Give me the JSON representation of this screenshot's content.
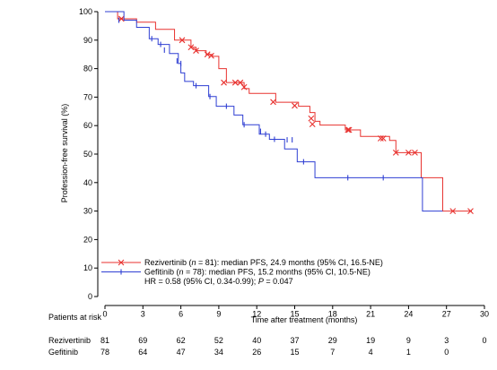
{
  "chart_data": {
    "type": "line",
    "xlabel": "Time after treatment (months)",
    "ylabel": "Profession-free survival (%)",
    "xlim": [
      0,
      30
    ],
    "ylim": [
      0,
      100
    ],
    "x_ticks": [
      "0",
      "3",
      "6",
      "9",
      "12",
      "15",
      "18",
      "21",
      "24",
      "27",
      "30"
    ],
    "y_ticks": [
      "0",
      "10",
      "20",
      "30",
      "40",
      "50",
      "60",
      "70",
      "80",
      "90",
      "100"
    ],
    "grid": false,
    "legend_position": "bottom-left",
    "series": [
      {
        "name": "Rezivertinib",
        "color": "#e8322f",
        "marker": "x-mark",
        "steps": [
          [
            0,
            100
          ],
          [
            1,
            97.5
          ],
          [
            2.5,
            96.3
          ],
          [
            4,
            93.8
          ],
          [
            5.5,
            90
          ],
          [
            6.8,
            87.5
          ],
          [
            7.2,
            86.3
          ],
          [
            8,
            85
          ],
          [
            8.5,
            84.3
          ],
          [
            9,
            80
          ],
          [
            9.6,
            75.1
          ],
          [
            10.5,
            75.1
          ],
          [
            11,
            73
          ],
          [
            11.4,
            71.3
          ],
          [
            13.5,
            68.2
          ],
          [
            15.3,
            66.8
          ],
          [
            16.2,
            64.6
          ],
          [
            16.6,
            61.5
          ],
          [
            17,
            60.2
          ],
          [
            19,
            58.5
          ],
          [
            20.2,
            56.2
          ],
          [
            22.5,
            54.8
          ],
          [
            23,
            50.5
          ],
          [
            25,
            41.7
          ],
          [
            26.7,
            30
          ],
          [
            29,
            30
          ]
        ],
        "censors": [
          [
            1.3,
            97.5
          ],
          [
            6.1,
            90
          ],
          [
            6.8,
            87.5
          ],
          [
            7.2,
            86.3
          ],
          [
            8.1,
            85
          ],
          [
            8.4,
            84.5
          ],
          [
            9.4,
            75.1
          ],
          [
            10.3,
            75.1
          ],
          [
            10.7,
            75.1
          ],
          [
            11,
            73.5
          ],
          [
            13.3,
            68.3
          ],
          [
            15,
            67
          ],
          [
            16.3,
            62.5
          ],
          [
            16.4,
            60.5
          ],
          [
            19.2,
            58.5
          ],
          [
            19.3,
            58.5
          ],
          [
            21.8,
            55.5
          ],
          [
            22,
            55.5
          ],
          [
            23,
            50.5
          ],
          [
            24,
            50.5
          ],
          [
            24.5,
            50.5
          ],
          [
            27.5,
            30
          ],
          [
            28.9,
            30
          ]
        ]
      },
      {
        "name": "Gefitinib",
        "color": "#2f3fd3",
        "marker": "plus-mark",
        "steps": [
          [
            0,
            100
          ],
          [
            1.5,
            97
          ],
          [
            2.5,
            94.5
          ],
          [
            3.5,
            90.5
          ],
          [
            4.2,
            88.5
          ],
          [
            5.1,
            85.3
          ],
          [
            5.8,
            81.8
          ],
          [
            6,
            78.5
          ],
          [
            6.3,
            75.5
          ],
          [
            7,
            74
          ],
          [
            8.2,
            70.2
          ],
          [
            8.8,
            66.8
          ],
          [
            10.2,
            63.7
          ],
          [
            10.9,
            60.3
          ],
          [
            12.2,
            57
          ],
          [
            13,
            55.2
          ],
          [
            14.2,
            51.8
          ],
          [
            15.2,
            47.3
          ],
          [
            16.6,
            41.7
          ],
          [
            24.7,
            41.7
          ],
          [
            25.1,
            30
          ],
          [
            26.7,
            30
          ]
        ],
        "censors": [
          [
            1.1,
            97
          ],
          [
            3.7,
            90.5
          ],
          [
            4.4,
            88.5
          ],
          [
            4.7,
            86.5
          ],
          [
            5.7,
            82.7
          ],
          [
            6,
            81.8
          ],
          [
            7.2,
            74
          ],
          [
            8.3,
            70.2
          ],
          [
            9.6,
            66.8
          ],
          [
            11,
            60.3
          ],
          [
            12.3,
            58
          ],
          [
            12.7,
            57
          ],
          [
            13.4,
            55.2
          ],
          [
            14.4,
            55
          ],
          [
            14.8,
            55
          ],
          [
            15.7,
            47.3
          ],
          [
            19.2,
            41.7
          ],
          [
            22,
            41.7
          ]
        ]
      }
    ],
    "legend_entries": [
      {
        "marker": "x-mark",
        "color": "#e8322f",
        "parts": [
          {
            "t": "Rezivertinib (",
            "i": false
          },
          {
            "t": "n",
            "i": true
          },
          {
            "t": " = 81): median PFS, 24.9 months (95% CI, 16.5-NE)",
            "i": false
          }
        ]
      },
      {
        "marker": "plus-mark",
        "color": "#2f3fd3",
        "parts": [
          {
            "t": "Gefitinib        (",
            "i": false
          },
          {
            "t": "n",
            "i": true
          },
          {
            "t": " = 78): median PFS, 15.2 months (95% CI, 10.5-NE)",
            "i": false
          }
        ]
      }
    ],
    "hr_text": [
      {
        "t": "HR = 0.58 (95% CI, 0.34-0.99); ",
        "i": false
      },
      {
        "t": "P",
        "i": true
      },
      {
        "t": " = 0.047",
        "i": false
      }
    ],
    "risk_table": {
      "title": "Patients at risk",
      "rows": [
        {
          "label": "Rezivertinib",
          "values": [
            "81",
            "69",
            "62",
            "52",
            "40",
            "37",
            "29",
            "19",
            "9",
            "3",
            "0"
          ]
        },
        {
          "label": "Gefitinib",
          "values": [
            "78",
            "64",
            "47",
            "34",
            "26",
            "15",
            "7",
            "4",
            "1",
            "0",
            ""
          ]
        }
      ]
    }
  }
}
